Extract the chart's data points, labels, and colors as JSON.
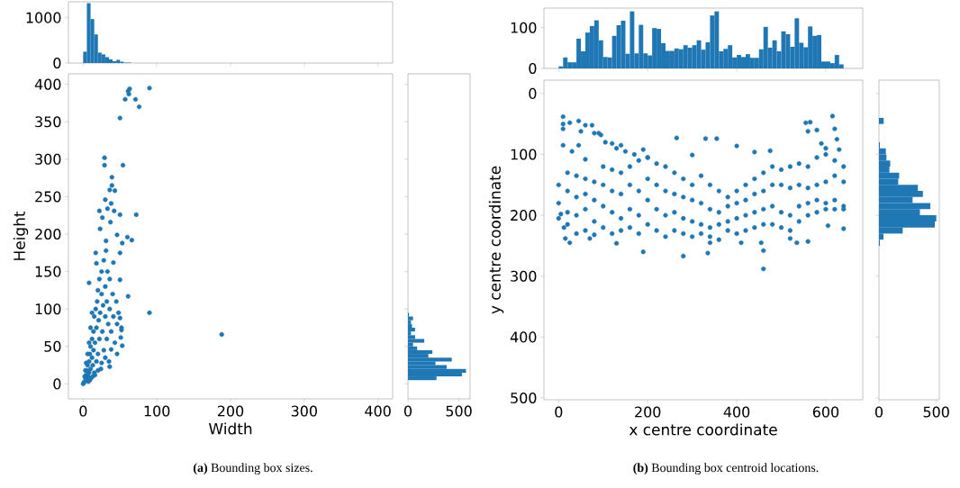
{
  "chart_data": [
    {
      "type": "histogram",
      "color": "#1f77b4",
      "bins": [
        0,
        5,
        10,
        15,
        20,
        25,
        30,
        35,
        40,
        45,
        50,
        55,
        60,
        65
      ],
      "values": [
        250,
        1320,
        970,
        630,
        230,
        190,
        130,
        80,
        40,
        70,
        30,
        10,
        10
      ],
      "xlim": [
        -20,
        420
      ],
      "ylim": [
        0,
        1350
      ],
      "xticks": [
        0,
        100,
        200,
        300,
        400
      ],
      "yticks": [
        0,
        1000
      ],
      "tick_labels": "y"
    },
    {
      "type": "scatter",
      "color": "#1f77b4",
      "marker": "circle",
      "xlabel": "Width",
      "ylabel": "Height",
      "xlim": [
        -20,
        420
      ],
      "ylim": [
        -20,
        414
      ],
      "xticks": [
        0,
        100,
        200,
        300,
        400
      ],
      "yticks": [
        0,
        50,
        100,
        150,
        200,
        250,
        300,
        350,
        400
      ],
      "annotations": [
        "**(a)** Bounding box sizes."
      ],
      "x": [
        90,
        63,
        61,
        62,
        57,
        71,
        76,
        50,
        29,
        29,
        54,
        39,
        39,
        43,
        36,
        30,
        38,
        33,
        22,
        42,
        50,
        72,
        26,
        37,
        23,
        46,
        31,
        60,
        66,
        53,
        17,
        31,
        50,
        41,
        18,
        50,
        8,
        61,
        90,
        188,
        52,
        51,
        53,
        38,
        46,
        36,
        0,
        2,
        3,
        4,
        5,
        5,
        6,
        7,
        8,
        8,
        9,
        10,
        10,
        11,
        12,
        12,
        13,
        14,
        14,
        15,
        15,
        16,
        17,
        18,
        18,
        19,
        20,
        20,
        21,
        22,
        22,
        23,
        24,
        25,
        25,
        26,
        27,
        28,
        28,
        30,
        30,
        32,
        32,
        33,
        34,
        35,
        36,
        36,
        38,
        40,
        41,
        43,
        45,
        46,
        48,
        50,
        52,
        12,
        10,
        8,
        6,
        4,
        3,
        1,
        2,
        7,
        9,
        13,
        16,
        20,
        25,
        30
      ],
      "values": [
        395,
        394,
        391,
        387,
        380,
        380,
        370,
        355,
        302,
        292,
        292,
        276,
        265,
        258,
        259,
        246,
        241,
        234,
        231,
        231,
        226,
        226,
        222,
        216,
        207,
        199,
        191,
        196,
        192,
        188,
        175,
        178,
        175,
        162,
        161,
        139,
        135,
        117,
        95,
        66,
        75,
        62,
        51,
        46,
        40,
        23,
        0,
        3,
        8,
        12,
        6,
        18,
        25,
        10,
        30,
        15,
        40,
        20,
        50,
        8,
        35,
        60,
        25,
        45,
        70,
        15,
        90,
        55,
        100,
        30,
        75,
        110,
        40,
        125,
        85,
        60,
        140,
        95,
        20,
        120,
        150,
        70,
        105,
        45,
        165,
        90,
        130,
        60,
        110,
        150,
        80,
        30,
        100,
        140,
        70,
        120,
        90,
        55,
        110,
        80,
        95,
        88,
        72,
        95,
        75,
        55,
        40,
        28,
        18,
        2,
        10,
        3,
        5,
        10,
        12,
        18,
        28,
        35
      ]
    },
    {
      "type": "histogram",
      "orientation": "horizontal",
      "color": "#1f77b4",
      "bins": [
        5,
        10,
        15,
        20,
        25,
        30,
        35,
        40,
        45,
        50,
        55,
        60,
        65,
        70,
        75,
        80,
        85,
        90,
        95
      ],
      "values": [
        280,
        530,
        570,
        380,
        270,
        430,
        200,
        240,
        90,
        50,
        160,
        70,
        30,
        70,
        40,
        30,
        50,
        10
      ],
      "xlim": [
        0,
        610
      ],
      "ylim": [
        -20,
        414
      ],
      "xticks": [
        0,
        500
      ],
      "yticks": [
        0,
        50,
        100,
        150,
        200,
        250,
        300,
        350,
        400
      ],
      "tick_labels": "x"
    },
    {
      "type": "histogram",
      "color": "#1f77b4",
      "bins": [
        0,
        10,
        20,
        30,
        40,
        50,
        60,
        70,
        80,
        90,
        100,
        110,
        120,
        130,
        140,
        150,
        160,
        170,
        180,
        190,
        200,
        210,
        220,
        230,
        240,
        250,
        260,
        270,
        280,
        290,
        300,
        310,
        320,
        330,
        340,
        350,
        360,
        370,
        380,
        390,
        400,
        410,
        420,
        430,
        440,
        450,
        460,
        470,
        480,
        490,
        500,
        510,
        520,
        530,
        540,
        550,
        560,
        570,
        580,
        590,
        600,
        610,
        620,
        630,
        640
      ],
      "values": [
        5,
        27,
        15,
        15,
        73,
        42,
        88,
        104,
        118,
        69,
        28,
        27,
        80,
        106,
        117,
        36,
        140,
        37,
        107,
        37,
        32,
        99,
        97,
        62,
        43,
        43,
        49,
        47,
        57,
        51,
        57,
        69,
        46,
        64,
        130,
        140,
        42,
        48,
        57,
        27,
        33,
        28,
        35,
        26,
        26,
        47,
        102,
        51,
        69,
        42,
        91,
        84,
        53,
        123,
        63,
        52,
        103,
        80,
        82,
        17,
        17,
        13,
        33,
        10
      ],
      "xlim": [
        -33,
        683
      ],
      "ylim": [
        0,
        148
      ],
      "xticks": [
        0,
        200,
        400,
        600
      ],
      "yticks": [
        0,
        100
      ],
      "tick_labels": "y"
    },
    {
      "type": "scatter",
      "color": "#1f77b4",
      "marker": "circle",
      "xlabel": "x centre coordinate",
      "ylabel": "y centre coordinate",
      "xlim": [
        -33,
        683
      ],
      "ylim": [
        503,
        -22
      ],
      "xticks": [
        0,
        200,
        400,
        600
      ],
      "yticks": [
        0,
        100,
        200,
        300,
        400,
        500
      ],
      "annotations": [
        "**(b)** Bounding box centroid locations."
      ],
      "x": [
        10,
        10,
        10,
        25,
        45,
        60,
        75,
        10,
        30,
        45,
        60,
        80,
        95,
        105,
        120,
        130,
        150,
        170,
        190,
        200,
        265,
        330,
        355,
        300,
        400,
        440,
        475,
        555,
        565,
        560,
        615,
        620,
        625,
        580,
        590,
        600,
        630,
        140,
        90,
        50,
        5,
        12,
        15,
        25,
        70,
        130,
        190,
        280,
        335,
        340,
        455,
        460,
        460,
        520,
        535,
        560,
        640,
        605,
        410,
        0,
        0,
        0,
        20,
        20,
        20,
        20,
        40,
        40,
        40,
        40,
        60,
        60,
        60,
        60,
        80,
        80,
        80,
        80,
        100,
        100,
        100,
        100,
        120,
        120,
        120,
        120,
        140,
        140,
        140,
        140,
        160,
        160,
        160,
        160,
        180,
        180,
        180,
        180,
        200,
        200,
        200,
        200,
        220,
        220,
        220,
        220,
        240,
        240,
        240,
        240,
        260,
        260,
        260,
        260,
        280,
        280,
        280,
        280,
        300,
        300,
        300,
        300,
        320,
        320,
        320,
        320,
        340,
        340,
        340,
        340,
        360,
        360,
        360,
        360,
        380,
        380,
        380,
        380,
        400,
        400,
        400,
        400,
        420,
        420,
        420,
        420,
        440,
        440,
        440,
        440,
        460,
        460,
        460,
        460,
        480,
        480,
        480,
        480,
        500,
        500,
        500,
        500,
        520,
        520,
        520,
        520,
        540,
        540,
        540,
        540,
        560,
        560,
        560,
        560,
        580,
        580,
        580,
        580,
        600,
        600,
        600,
        600,
        620,
        620,
        620,
        620,
        640,
        640,
        640,
        640
      ],
      "values": [
        38,
        50,
        58,
        48,
        45,
        52,
        52,
        85,
        95,
        85,
        108,
        65,
        68,
        80,
        82,
        90,
        95,
        100,
        92,
        105,
        73,
        74,
        74,
        101,
        86,
        96,
        94,
        48,
        47,
        62,
        37,
        58,
        75,
        60,
        82,
        90,
        92,
        85,
        65,
        62,
        198,
        220,
        238,
        245,
        238,
        246,
        260,
        267,
        262,
        245,
        245,
        258,
        288,
        238,
        245,
        243,
        222,
        217,
        245,
        150,
        180,
        205,
        130,
        160,
        195,
        215,
        135,
        170,
        200,
        230,
        140,
        165,
        190,
        225,
        145,
        175,
        210,
        232,
        120,
        150,
        185,
        220,
        125,
        160,
        195,
        230,
        130,
        165,
        205,
        225,
        120,
        150,
        190,
        220,
        110,
        160,
        200,
        230,
        105,
        140,
        175,
        215,
        115,
        150,
        190,
        225,
        120,
        160,
        200,
        235,
        130,
        165,
        195,
        225,
        140,
        170,
        205,
        230,
        150,
        175,
        210,
        235,
        135,
        180,
        215,
        230,
        150,
        190,
        220,
        235,
        160,
        195,
        215,
        240,
        170,
        185,
        210,
        225,
        160,
        180,
        205,
        230,
        150,
        175,
        200,
        225,
        140,
        165,
        195,
        220,
        130,
        160,
        190,
        215,
        120,
        150,
        185,
        215,
        125,
        150,
        195,
        220,
        120,
        155,
        200,
        225,
        115,
        150,
        185,
        210,
        120,
        155,
        180,
        200,
        105,
        150,
        175,
        195,
        100,
        145,
        180,
        190,
        110,
        135,
        175,
        190,
        120,
        145,
        185,
        190
      ]
    },
    {
      "type": "histogram",
      "orientation": "horizontal",
      "color": "#1f77b4",
      "bins": [
        40,
        50,
        60,
        70,
        80,
        90,
        100,
        110,
        120,
        130,
        140,
        150,
        160,
        170,
        180,
        190,
        200,
        210,
        220,
        230,
        240,
        250
      ],
      "values": [
        41,
        0,
        0,
        0,
        8,
        60,
        65,
        98,
        91,
        176,
        168,
        339,
        383,
        293,
        448,
        357,
        500,
        487,
        207,
        39,
        8
      ],
      "xlim": [
        0,
        526
      ],
      "ylim": [
        503,
        -22
      ],
      "xticks": [
        0,
        500
      ],
      "yticks": [
        0,
        100,
        200,
        300,
        400,
        500
      ],
      "tick_labels": "x"
    }
  ]
}
